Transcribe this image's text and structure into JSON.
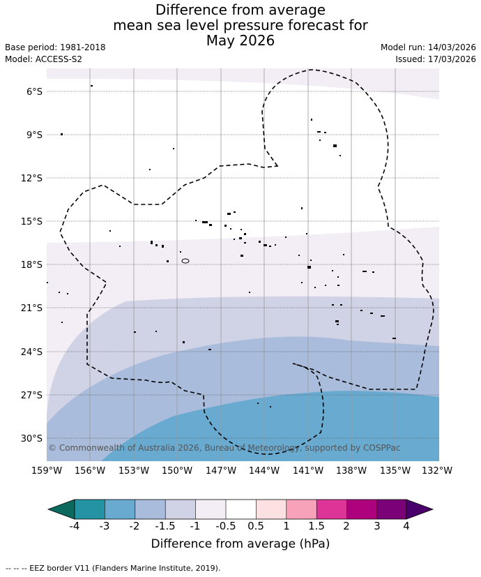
{
  "header": {
    "title_line1": "Difference from average",
    "title_line2": "mean sea level pressure forecast for",
    "title_line3": "May 2026",
    "base_period": "Base period: 1981-2018",
    "model": "Model: ACCESS-S2",
    "model_run": "Model run: 14/03/2026",
    "issued": "Issued: 17/03/2026"
  },
  "map": {
    "lat_labels": [
      "6°S",
      "9°S",
      "12°S",
      "15°S",
      "18°S",
      "21°S",
      "24°S",
      "27°S",
      "30°S"
    ],
    "lon_labels": [
      "159°W",
      "156°W",
      "153°W",
      "150°W",
      "147°W",
      "144°W",
      "141°W",
      "138°W",
      "135°W",
      "132°W"
    ],
    "copyright": "© Commonwealth of Australia 2026, Bureau of Meteorology, supported by COSPPac"
  },
  "colorbar": {
    "tick_labels": [
      "-4",
      "-3",
      "-2",
      "-1.5",
      "-1",
      "-0.5",
      "0.5",
      "1",
      "1.5",
      "2",
      "3",
      "4"
    ],
    "colors": {
      "under": "#0b6a5e",
      "c1": "#2493a3",
      "c2": "#69aad1",
      "c3": "#a9bcdb",
      "c4": "#d0d2e6",
      "c5": "#f3edf6",
      "c6": "#ffffff",
      "c7": "#fde0e2",
      "c8": "#f8a2b9",
      "c9": "#dd3497",
      "c10": "#ae017e",
      "c11": "#7a0177",
      "over": "#49006a"
    },
    "title": "Difference from average (hPa)"
  },
  "footer": {
    "legend": "--  --  -- EEZ border V11 (Flanders Marine Institute, 2019)."
  }
}
